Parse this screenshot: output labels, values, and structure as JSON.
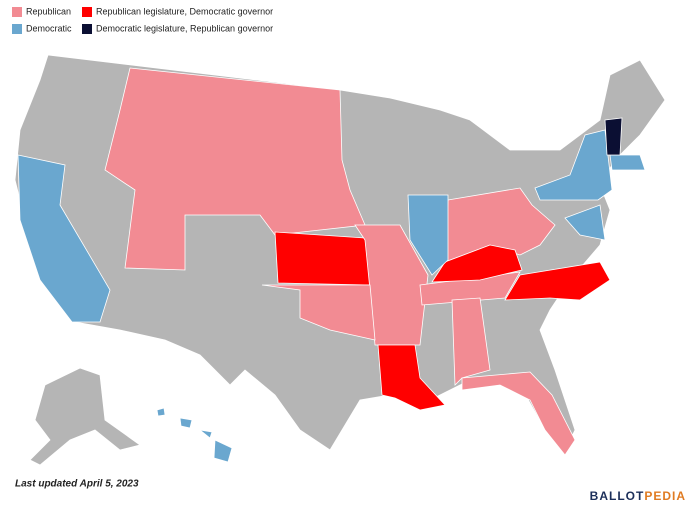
{
  "legend": [
    {
      "label": "Republican",
      "color": "#f28b93"
    },
    {
      "label": "Republican legislature, Democratic governor",
      "color": "#ff0000"
    },
    {
      "label": "Democratic",
      "color": "#6aa7cf"
    },
    {
      "label": "Democratic legislature, Republican governor",
      "color": "#0b0f33"
    }
  ],
  "footer": {
    "note": "Last updated April 5, 2023",
    "logo_left": "BALLOT",
    "logo_right": "PEDIA"
  }
}
